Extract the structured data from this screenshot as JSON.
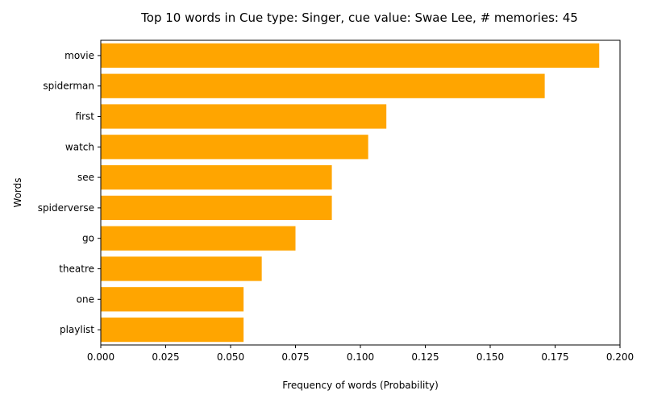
{
  "chart_data": {
    "type": "bar",
    "orientation": "horizontal",
    "title": "Top 10 words in Cue type: Singer, cue value: Swae Lee, # memories: 45",
    "xlabel": "Frequency of words (Probability)",
    "ylabel": "Words",
    "categories": [
      "movie",
      "spiderman",
      "first",
      "watch",
      "see",
      "spiderverse",
      "go",
      "theatre",
      "one",
      "playlist"
    ],
    "values": [
      0.192,
      0.171,
      0.11,
      0.103,
      0.089,
      0.089,
      0.075,
      0.062,
      0.055,
      0.055
    ],
    "xlim": [
      0,
      0.2
    ],
    "xticks": [
      "0.000",
      "0.025",
      "0.050",
      "0.075",
      "0.100",
      "0.125",
      "0.150",
      "0.175",
      "0.200"
    ],
    "bar_color": "#FFA500",
    "grid": false
  }
}
